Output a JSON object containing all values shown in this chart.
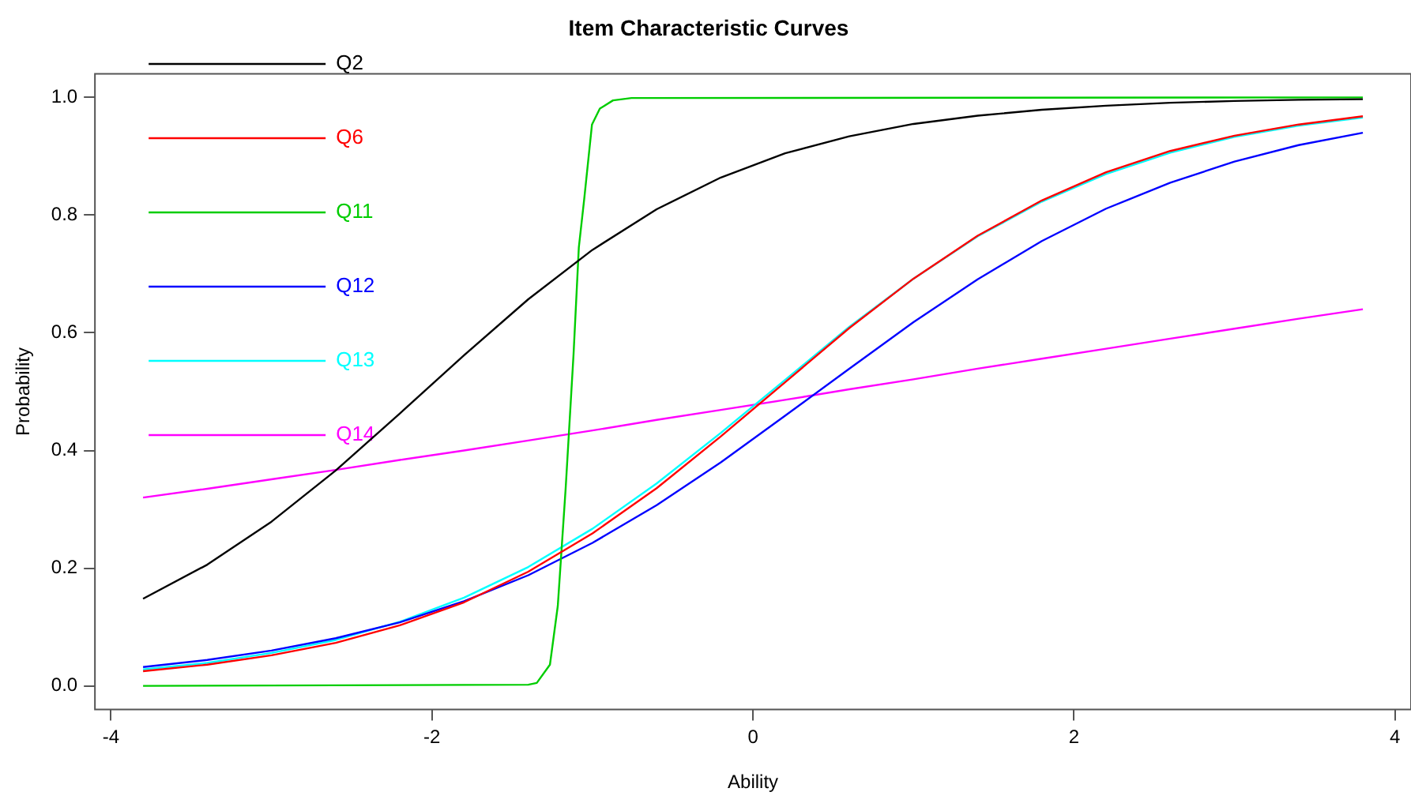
{
  "chart_data": {
    "type": "line",
    "title": "Item Characteristic Curves",
    "xlabel": "Ability",
    "ylabel": "Probability",
    "x": [
      -3.8,
      -3.4,
      -3.0,
      -2.6,
      -2.2,
      -1.8,
      -1.4,
      -1.0,
      -0.6,
      -0.2,
      0.2,
      0.6,
      1.0,
      1.4,
      1.8,
      2.2,
      2.6,
      3.0,
      3.4,
      3.8
    ],
    "xlim": [
      -4.1,
      4.1
    ],
    "xticks": [
      -4,
      -2,
      0,
      2,
      4
    ],
    "ylim": [
      -0.04,
      1.04
    ],
    "yticks": [
      {
        "value": 0,
        "label": "0.0"
      },
      0.2,
      0.4,
      0.6,
      0.8,
      {
        "value": 1,
        "label": "1.0"
      }
    ],
    "grid": false,
    "legend": "top left",
    "marker": "none",
    "line_style": "solid",
    "series": [
      {
        "name": "Q2",
        "color": "#000000",
        "values": [
          0.148,
          0.206,
          0.279,
          0.366,
          0.463,
          0.562,
          0.657,
          0.741,
          0.81,
          0.864,
          0.905,
          0.934,
          0.955,
          0.969,
          0.979,
          0.986,
          0.991,
          0.994,
          0.996,
          0.997
        ]
      },
      {
        "name": "Q6",
        "color": "#ff0000",
        "values": [
          0.025,
          0.036,
          0.052,
          0.073,
          0.103,
          0.142,
          0.194,
          0.259,
          0.336,
          0.424,
          0.516,
          0.608,
          0.692,
          0.765,
          0.825,
          0.873,
          0.909,
          0.935,
          0.954,
          0.968
        ]
      },
      {
        "name": "Q11",
        "color": "#00cd00",
        "x": [
          -3.8,
          -1.4,
          -1.347,
          -1.265,
          -1.216,
          -1.167,
          -1.118,
          -1.085,
          -1.052,
          -1.003,
          -0.954,
          -0.872,
          -0.757,
          3.8
        ],
        "values": [
          0,
          0.002,
          0.005,
          0.036,
          0.136,
          0.336,
          0.563,
          0.745,
          0.826,
          0.954,
          0.981,
          0.995,
          0.999,
          1.0
        ]
      },
      {
        "name": "Q12",
        "color": "#0000ff",
        "values": [
          0.032,
          0.044,
          0.06,
          0.081,
          0.108,
          0.144,
          0.188,
          0.243,
          0.307,
          0.38,
          0.459,
          0.539,
          0.618,
          0.691,
          0.756,
          0.811,
          0.855,
          0.891,
          0.919,
          0.94
        ]
      },
      {
        "name": "Q13",
        "color": "#00ffff",
        "values": [
          0.028,
          0.039,
          0.056,
          0.078,
          0.109,
          0.15,
          0.202,
          0.267,
          0.344,
          0.43,
          0.52,
          0.61,
          0.692,
          0.764,
          0.823,
          0.87,
          0.906,
          0.933,
          0.952,
          0.966
        ]
      },
      {
        "name": "Q14",
        "color": "#ff00ff",
        "values": [
          0.32,
          0.335,
          0.351,
          0.367,
          0.384,
          0.4,
          0.417,
          0.434,
          0.452,
          0.469,
          0.486,
          0.504,
          0.521,
          0.539,
          0.556,
          0.573,
          0.59,
          0.607,
          0.624,
          0.64
        ]
      }
    ]
  }
}
